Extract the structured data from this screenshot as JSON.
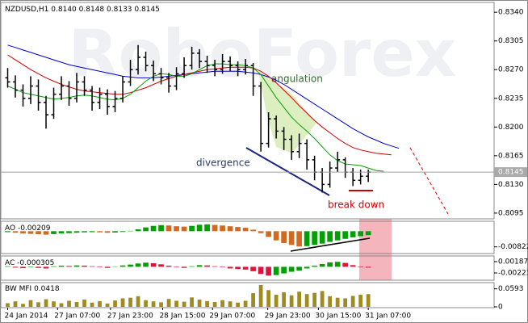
{
  "chart_data": [
    {
      "type": "ohlc",
      "title": "NZDUSD,H1",
      "watermark": "RoboForex",
      "last_bar_labels": {
        "open": "0.8140",
        "high": "0.8148",
        "low": "0.8133",
        "close": "0.8145"
      },
      "annotations": [
        "angulation",
        "divergence",
        "break down"
      ],
      "open": [
        0.826,
        0.8255,
        0.8245,
        0.8235,
        0.825,
        0.823,
        0.8215,
        0.824,
        0.825,
        0.8235,
        0.8255,
        0.8245,
        0.823,
        0.824,
        0.8225,
        0.8235,
        0.8255,
        0.827,
        0.8285,
        0.8275,
        0.8265,
        0.826,
        0.825,
        0.8265,
        0.8275,
        0.829,
        0.828,
        0.8275,
        0.827,
        0.828,
        0.8275,
        0.827,
        0.8275,
        0.825,
        0.818,
        0.821,
        0.8195,
        0.8185,
        0.817,
        0.818,
        0.816,
        0.8145,
        0.813,
        0.815,
        0.816,
        0.8145,
        0.8135,
        0.814
      ],
      "high": [
        0.8272,
        0.8263,
        0.8252,
        0.8262,
        0.8258,
        0.8238,
        0.8248,
        0.8262,
        0.8256,
        0.8266,
        0.8262,
        0.825,
        0.8248,
        0.8246,
        0.8244,
        0.8262,
        0.8282,
        0.83,
        0.8292,
        0.8281,
        0.8272,
        0.8266,
        0.8273,
        0.8285,
        0.8298,
        0.8295,
        0.8287,
        0.8282,
        0.8289,
        0.8286,
        0.828,
        0.8283,
        0.8278,
        0.8255,
        0.8218,
        0.8214,
        0.82,
        0.819,
        0.8192,
        0.8185,
        0.8165,
        0.815,
        0.8158,
        0.817,
        0.8163,
        0.815,
        0.8148,
        0.8148
      ],
      "low": [
        0.8248,
        0.8236,
        0.8225,
        0.8228,
        0.822,
        0.8198,
        0.821,
        0.8233,
        0.8226,
        0.823,
        0.8238,
        0.822,
        0.8222,
        0.8215,
        0.8218,
        0.823,
        0.825,
        0.8264,
        0.8268,
        0.8256,
        0.8252,
        0.8242,
        0.8245,
        0.826,
        0.827,
        0.8272,
        0.8266,
        0.8262,
        0.8265,
        0.8268,
        0.8262,
        0.8264,
        0.8238,
        0.817,
        0.8175,
        0.8186,
        0.8172,
        0.816,
        0.8162,
        0.8148,
        0.8135,
        0.812,
        0.8126,
        0.8145,
        0.8138,
        0.8128,
        0.813,
        0.8133
      ],
      "close": [
        0.8255,
        0.8245,
        0.8235,
        0.825,
        0.823,
        0.8215,
        0.824,
        0.825,
        0.8235,
        0.8255,
        0.8245,
        0.823,
        0.824,
        0.8225,
        0.8235,
        0.8255,
        0.827,
        0.8285,
        0.8275,
        0.8265,
        0.826,
        0.825,
        0.8265,
        0.8275,
        0.829,
        0.828,
        0.8275,
        0.827,
        0.828,
        0.8275,
        0.827,
        0.8275,
        0.825,
        0.818,
        0.821,
        0.8195,
        0.8185,
        0.817,
        0.818,
        0.816,
        0.8145,
        0.813,
        0.815,
        0.816,
        0.8145,
        0.8135,
        0.814,
        0.8145
      ],
      "bar_color": "#000000",
      "series": [
        {
          "color": "#0000cc",
          "values": [
            0.83,
            0.8297,
            0.8294,
            0.8291,
            0.8288,
            0.8285,
            0.8282,
            0.8279,
            0.8276,
            0.8274,
            0.8272,
            0.827,
            0.8268,
            0.8266,
            0.8264,
            0.8262,
            0.8261,
            0.826,
            0.826,
            0.826,
            0.8261,
            0.8262,
            0.8263,
            0.8264,
            0.8265,
            0.8266,
            0.8267,
            0.8268,
            0.8268,
            0.8268,
            0.8268,
            0.8267,
            0.8266,
            0.8264,
            0.8261,
            0.8257,
            0.8252,
            0.8246,
            0.824,
            0.8234,
            0.8228,
            0.8222,
            0.8216,
            0.821,
            0.8204,
            0.8198,
            0.8193,
            0.8188,
            0.8184,
            0.818,
            0.8177,
            0.8174
          ]
        },
        {
          "color": "#cc0000",
          "values": [
            0.8288,
            0.8282,
            0.8276,
            0.827,
            0.8265,
            0.826,
            0.8256,
            0.8252,
            0.8249,
            0.8246,
            0.8244,
            0.8243,
            0.8242,
            0.8241,
            0.824,
            0.824,
            0.8242,
            0.8245,
            0.8248,
            0.8252,
            0.8256,
            0.8259,
            0.8262,
            0.8264,
            0.8266,
            0.8268,
            0.827,
            0.8271,
            0.8272,
            0.8273,
            0.8273,
            0.8273,
            0.8272,
            0.8268,
            0.8262,
            0.8254,
            0.8245,
            0.8236,
            0.8226,
            0.8217,
            0.8208,
            0.82,
            0.8193,
            0.8186,
            0.818,
            0.8175,
            0.8172,
            0.817,
            0.8168,
            0.8167,
            0.8166
          ]
        },
        {
          "color": "#00a000",
          "values": [
            0.825,
            0.8246,
            0.8242,
            0.824,
            0.8238,
            0.8236,
            0.8234,
            0.8235,
            0.8236,
            0.8238,
            0.8239,
            0.8238,
            0.8236,
            0.8234,
            0.8233,
            0.8235,
            0.824,
            0.8248,
            0.8256,
            0.8262,
            0.8265,
            0.8264,
            0.8262,
            0.8262,
            0.8265,
            0.827,
            0.8275,
            0.8277,
            0.8277,
            0.8276,
            0.8276,
            0.8275,
            0.8272,
            0.8264,
            0.825,
            0.8236,
            0.8224,
            0.8212,
            0.8203,
            0.8195,
            0.8186,
            0.8176,
            0.8166,
            0.8159,
            0.8155,
            0.8154,
            0.8153,
            0.815,
            0.8147,
            0.8146
          ]
        }
      ],
      "xlim": [
        -1,
        63.4
      ],
      "xticks": [
        {
          "value": 0,
          "label": "24 Jan 2014"
        },
        {
          "value": 6.5,
          "label": "27 Jan 07:00"
        },
        {
          "value": 13.4,
          "label": "27 Jan 23:00"
        },
        {
          "value": 20.2,
          "label": "28 Jan 15:00"
        },
        {
          "value": 26.7,
          "label": "29 Jan 07:00"
        },
        {
          "value": 33.9,
          "label": "29 Jan 23:00"
        },
        {
          "value": 40.5,
          "label": "30 Jan 15:00"
        },
        {
          "value": 47,
          "label": "31 Jan 07:00"
        }
      ],
      "ylim": [
        0.8089,
        0.8351
      ],
      "yticks": [
        {
          "value": 0.834,
          "label": "0.8340"
        },
        0.8305,
        {
          "value": 0.827,
          "label": "0.8270"
        },
        0.8235,
        {
          "value": 0.82,
          "label": "0.8200"
        },
        0.8165,
        {
          "value": 0.813,
          "label": "0.8130"
        },
        0.8095
      ],
      "grid": false
    },
    {
      "type": "histogram",
      "name": "AO",
      "up_color": "#00a000",
      "down_color": "#d2691e",
      "values": [
        -0.0005,
        -0.0008,
        -0.0012,
        -0.0014,
        -0.0016,
        -0.0018,
        -0.0015,
        -0.0012,
        -0.001,
        -0.0008,
        -0.0006,
        -0.0005,
        -0.0006,
        -0.0008,
        -0.0007,
        -0.0004,
        0.0002,
        0.001,
        0.002,
        0.0028,
        0.0032,
        0.003,
        0.0026,
        0.0024,
        0.0028,
        0.0034,
        0.0036,
        0.0033,
        0.003,
        0.0026,
        0.0022,
        0.0018,
        0.0008,
        -0.001,
        -0.003,
        -0.0048,
        -0.0062,
        -0.0072,
        -0.008,
        -0.0078,
        -0.0072,
        -0.0065,
        -0.0056,
        -0.0048,
        -0.004,
        -0.0032,
        -0.0026,
        -0.00209
      ],
      "ylim": [
        -0.0113,
        0.0048
      ],
      "yticks": [
        -0.00822
      ]
    },
    {
      "type": "histogram",
      "name": "AC",
      "up_color": "#00a000",
      "down_color": "#dc143c",
      "values": [
        0.0002,
        -0.0003,
        -0.0005,
        -0.0002,
        -0.0004,
        -0.0006,
        0.0002,
        0.0004,
        0.0003,
        0.0005,
        0.0004,
        0.0002,
        -0.0002,
        -0.0004,
        0.0001,
        0.0005,
        0.0008,
        0.0012,
        0.0015,
        0.0013,
        0.0009,
        0.0004,
        -0.0002,
        -0.0004,
        0.0002,
        0.0006,
        0.0005,
        0.0002,
        -0.0002,
        -0.0006,
        -0.0008,
        -0.001,
        -0.0016,
        -0.0026,
        -0.0032,
        -0.003,
        -0.0024,
        -0.0018,
        -0.0014,
        -0.0006,
        0.0004,
        0.001,
        0.0016,
        0.0018,
        0.0014,
        0.0006,
        -0.0002,
        -0.000305
      ],
      "ylim": [
        -0.00457,
        0.00363
      ],
      "yticks": [
        0.001875,
        -0.00223
      ]
    },
    {
      "type": "columns",
      "name": "BW MFI",
      "color": "#a08c1e",
      "values": [
        0.012,
        0.018,
        0.01,
        0.022,
        0.015,
        0.025,
        0.018,
        0.012,
        0.02,
        0.016,
        0.024,
        0.014,
        0.019,
        0.011,
        0.021,
        0.028,
        0.03,
        0.035,
        0.022,
        0.018,
        0.015,
        0.026,
        0.02,
        0.017,
        0.031,
        0.024,
        0.019,
        0.016,
        0.022,
        0.018,
        0.014,
        0.02,
        0.045,
        0.072,
        0.055,
        0.04,
        0.048,
        0.038,
        0.05,
        0.042,
        0.046,
        0.052,
        0.035,
        0.03,
        0.028,
        0.036,
        0.04,
        0.0418
      ],
      "ylim": [
        0,
        0.077
      ],
      "yticks": [
        0.0593,
        0
      ]
    }
  ]
}
